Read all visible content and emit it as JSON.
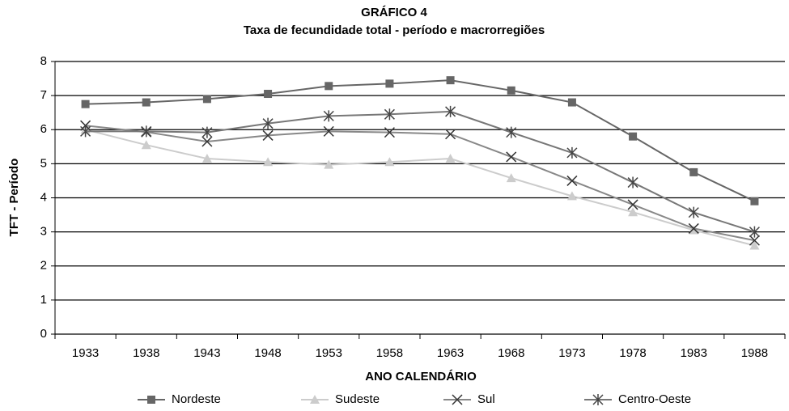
{
  "chart_data": {
    "type": "line",
    "title": "GRÁFICO 4",
    "subtitle": "Taxa de fecundidade total - período e macrorregiões",
    "x_label": "ANO CALENDÁRIO",
    "y_label": "TFT - Período",
    "categories": [
      "1933",
      "1938",
      "1943",
      "1948",
      "1953",
      "1958",
      "1963",
      "1968",
      "1973",
      "1978",
      "1983",
      "1988"
    ],
    "series": [
      {
        "name": "Nordeste",
        "color": "#666666",
        "marker": "square",
        "values": [
          6.75,
          6.8,
          6.9,
          7.05,
          7.28,
          7.35,
          7.45,
          7.15,
          6.8,
          5.8,
          4.75,
          3.9
        ]
      },
      {
        "name": "Sudeste",
        "color": "#cccccc",
        "marker": "triangle",
        "values": [
          6.0,
          5.55,
          5.15,
          5.05,
          4.97,
          5.05,
          5.15,
          4.58,
          4.05,
          3.58,
          3.05,
          2.6
        ]
      },
      {
        "name": "Sul",
        "color": "#888888",
        "marker": "x",
        "values": [
          6.12,
          5.93,
          5.65,
          5.83,
          5.95,
          5.92,
          5.87,
          5.2,
          4.5,
          3.8,
          3.1,
          2.75
        ]
      },
      {
        "name": "Centro-Oeste",
        "color": "#777777",
        "marker": "star",
        "values": [
          5.95,
          5.95,
          5.92,
          6.18,
          6.4,
          6.45,
          6.53,
          5.92,
          5.32,
          4.45,
          3.57,
          3.0
        ]
      }
    ],
    "ylim": [
      0,
      8
    ],
    "yticks": [
      0,
      1,
      2,
      3,
      4,
      5,
      6,
      7,
      8
    ],
    "grid": true,
    "legend": "bottom"
  }
}
